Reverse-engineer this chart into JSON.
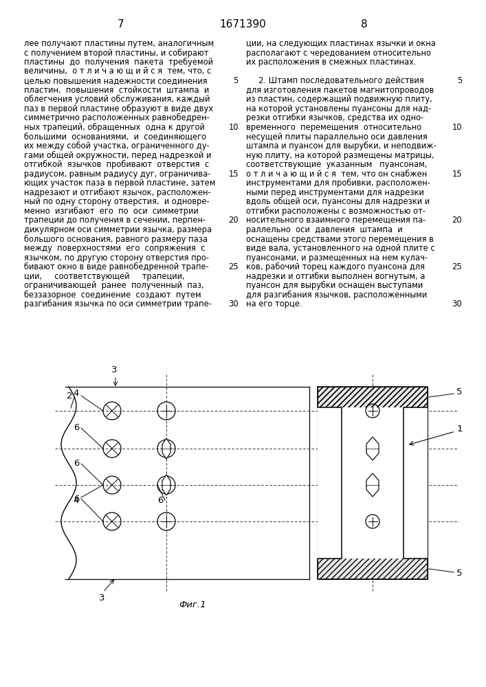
{
  "page_number_left": "7",
  "patent_number": "1671390",
  "page_number_right": "8",
  "col_left_lines": [
    "лее получают пластины путем, аналогичным",
    "с получением второй пластины, и собирают",
    "пластины  до  получения  пакета  требуемой",
    "величины,  о т л и ч а ю щ и й с я  тем, что, с",
    "целью повышения надежности соединения",
    "пластин,  повышения  стойкости  штампа  и",
    "облегчения условий обслуживания, каждый",
    "паз в первой пластине образуют в виде двух",
    "симметрично расположенных равнобедрен-",
    "ных трапеций, обращенных  одна к другой",
    "большими  основаниями,  и  соединяющего",
    "их между собой участка, ограниченного ду-",
    "гами общей окружности, перед надрезкой и",
    "отгибкой  язычков  пробивают  отверстия  с",
    "радиусом, равным радиусу дуг, ограничива-",
    "ющих участок паза в первой пластине, затем",
    "надрезают и отгибают язычок, расположен-",
    "ный по одну сторону отверстия,  и одновре-",
    "менно  изгибают  его  по  оси  симметрии",
    "трапеции до получения в сечении, перпен-",
    "дикулярном оси симметрии язычка, размера",
    "большого основания, равного размеру паза",
    "между  поверхностями  его  сопряжения  с",
    "язычком, по другую сторону отверстия про-",
    "бивают окно в виде равнобедренной трапе-",
    "ции,     соответствующей     трапеции,",
    "ограничивающей  ранее  полученный  паз,",
    "беззазорное  соединение  создают  путем",
    "разгибания язычка по оси симметрии трапе-"
  ],
  "col_right_lines": [
    "ции, на следующих пластинах язычки и окна",
    "располагают с чередованием относительно",
    "их расположения в смежных пластинах.",
    "",
    "     2. Штамп последовательного действия",
    "для изготовления пакетов магнитопроводов",
    "из пластин, содержащий подвижную плиту,",
    "на которой установлены пуансоны для над-",
    "резки отгибки язычков, средства их одно-",
    "временного  перемещения  относительно",
    "несущей плиты параллельно оси давления",
    "штампа и пуансон для вырубки, и неподвиж-",
    "ную плиту, на которой размещены матрицы,",
    "соответствующие  указанным   пуансонам,",
    "о т л и ч а ю щ и й с я  тем, что он снабжен",
    "инструментами для пробивки, расположен-",
    "ными перед инструментами для надрезки",
    "вдоль общей оси, пуансоны для надрезки и",
    "отгибки расположены с возможностью от-",
    "носительного взаимного перемещения па-",
    "раллельно  оси  давления  штампа  и",
    "оснащены средствами этого перемещения в",
    "виде вала, установленного на одной плите с",
    "пуансонами, и размещенных на нем кулач-",
    "ков, рабочий торец каждого пуансона для",
    "надрезки и отгибки выполнен вогнутым, а",
    "пуансон для вырубки оснащен выступами",
    "для разгибания язычков, расположенными",
    "на его торце."
  ],
  "line_numbers": {
    "4": "5",
    "9": "10",
    "14": "15",
    "19": "20",
    "24": "25",
    "28": "30"
  },
  "fig_caption": "Фиг.1",
  "bg": "#ffffff",
  "tc": "#000000",
  "body_fs": 8.3,
  "header_fs": 11.0,
  "caption_fs": 9.5,
  "label_fs": 9.5
}
